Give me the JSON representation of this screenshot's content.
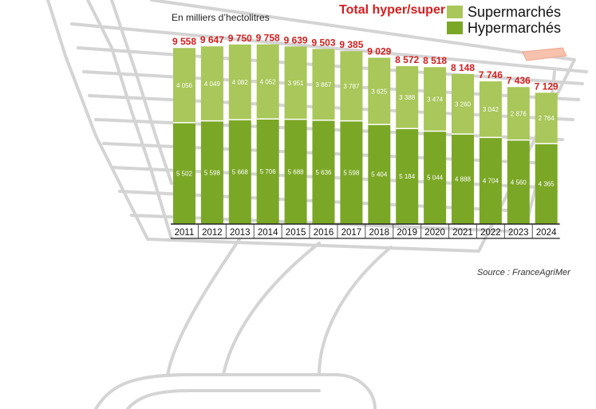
{
  "header": {
    "unit": "En milliers d’hectolitres",
    "total_label": "Total hyper/super"
  },
  "legend": [
    {
      "label": "Supermarchés",
      "color": "#a9c75a"
    },
    {
      "label": "Hypermarchés",
      "color": "#7ba726"
    }
  ],
  "source": "Source : FranceAgriMer",
  "chart_data": {
    "type": "bar",
    "stacked": true,
    "unit": "En milliers d’hectolitres",
    "categories": [
      "2011",
      "2012",
      "2013",
      "2014",
      "2015",
      "2016",
      "2017",
      "2018",
      "2019",
      "2020",
      "2021",
      "2022",
      "2023",
      "2024"
    ],
    "series": [
      {
        "name": "Hypermarchés",
        "color": "#7ba726",
        "values": [
          5502,
          5598,
          5668,
          5706,
          5688,
          5636,
          5598,
          5404,
          5184,
          5044,
          4888,
          4704,
          4560,
          4365
        ]
      },
      {
        "name": "Supermarchés",
        "color": "#a9c75a",
        "values": [
          4056,
          4049,
          4082,
          4052,
          3951,
          3867,
          3787,
          3625,
          3388,
          3474,
          3260,
          3042,
          2876,
          2764
        ]
      }
    ],
    "totals_label": "Total hyper/super",
    "totals": [
      9558,
      9647,
      9750,
      9758,
      9639,
      9503,
      9385,
      9029,
      8572,
      8518,
      8148,
      7746,
      7436,
      7129
    ],
    "value_labels": {
      "Hypermarchés": [
        "5 502",
        "5 598",
        "5 668",
        "5 706",
        "5 688",
        "5 636",
        "5 598",
        "5 404",
        "5 184",
        "5 044",
        "4 888",
        "4 704",
        "4 560",
        "4 365"
      ],
      "Supermarchés": [
        "4 056",
        "4 049",
        "4 082",
        "4 052",
        "3 951",
        "3 867",
        "3 787",
        "3 625",
        "3 388",
        "3 474",
        "3 260",
        "3 042",
        "2 876",
        "2 764"
      ],
      "totals": [
        "9 558",
        "9 647",
        "9 750",
        "9 758",
        "9 639",
        "9 503",
        "9 385",
        "9 029",
        "8 572",
        "8 518",
        "8 148",
        "7 746",
        "7 436",
        "7 129"
      ]
    },
    "total_color": "#d41e1e",
    "grid": false,
    "legend_position": "top-right"
  }
}
